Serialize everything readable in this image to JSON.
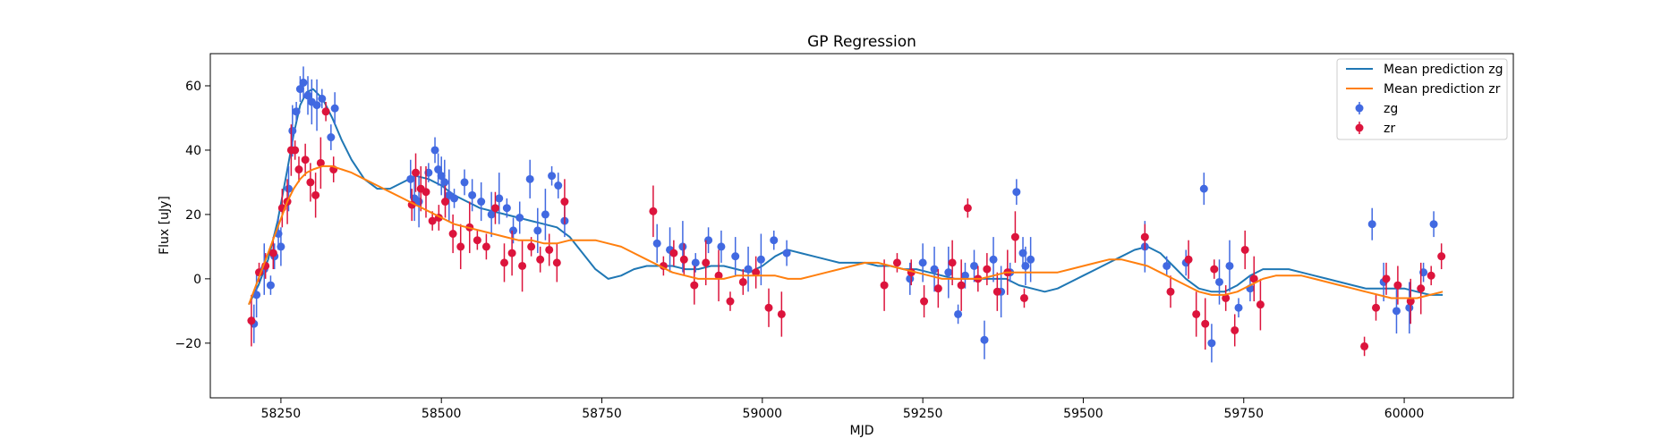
{
  "chart_data": {
    "type": "scatter",
    "title": "GP Regression",
    "xlabel": "MJD",
    "ylabel": "Flux [uJy]",
    "xlim": [
      58140,
      60170
    ],
    "ylim": [
      -37,
      70
    ],
    "xticks": [
      58250,
      58500,
      58750,
      59000,
      59250,
      59500,
      59750,
      60000
    ],
    "yticks": [
      -20,
      0,
      20,
      40,
      60
    ],
    "grid": false,
    "legend_position": "top-right",
    "legend": [
      "Mean prediction zg",
      "Mean prediction zr",
      "zg",
      "zr"
    ],
    "colors": {
      "zg_line": "#1f77b4",
      "zr_line": "#ff7f0e",
      "zg_points": "#4169e1",
      "zr_points": "#dc143c"
    },
    "series": [
      {
        "name": "Mean prediction zg",
        "kind": "line",
        "x": [
          58200,
          58215,
          58230,
          58245,
          58260,
          58270,
          58280,
          58290,
          58300,
          58315,
          58330,
          58345,
          58360,
          58380,
          58400,
          58420,
          58440,
          58460,
          58480,
          58500,
          58520,
          58540,
          58560,
          58580,
          58600,
          58620,
          58640,
          58660,
          58680,
          58700,
          58720,
          58740,
          58760,
          58780,
          58800,
          58820,
          58840,
          58860,
          58880,
          58900,
          58920,
          58940,
          58960,
          58980,
          59000,
          59020,
          59040,
          59060,
          59080,
          59100,
          59120,
          59140,
          59160,
          59180,
          59200,
          59220,
          59240,
          59260,
          59280,
          59300,
          59320,
          59340,
          59360,
          59380,
          59400,
          59420,
          59440,
          59460,
          59480,
          59500,
          59520,
          59540,
          59560,
          59580,
          59600,
          59620,
          59640,
          59660,
          59680,
          59700,
          59720,
          59740,
          59760,
          59780,
          59800,
          59820,
          59840,
          59860,
          59880,
          59900,
          59920,
          59940,
          59960,
          59980,
          60000,
          60020,
          60040,
          60060
        ],
        "y": [
          -8,
          -2,
          6,
          18,
          34,
          45,
          54,
          58,
          59,
          56,
          50,
          43,
          37,
          31,
          28,
          28,
          30,
          32,
          31,
          29,
          26,
          24,
          22,
          21,
          20,
          19,
          18,
          17,
          16,
          13,
          8,
          3,
          0,
          1,
          3,
          4,
          4,
          4,
          3,
          3,
          4,
          4,
          3,
          2,
          4,
          7,
          9,
          8,
          7,
          6,
          5,
          5,
          5,
          4,
          4,
          3,
          3,
          2,
          1,
          0,
          0,
          0,
          0,
          0,
          -2,
          -3,
          -4,
          -3,
          -1,
          1,
          3,
          5,
          7,
          9,
          10,
          8,
          4,
          0,
          -3,
          -4,
          -4,
          -2,
          1,
          3,
          3,
          3,
          2,
          1,
          0,
          -1,
          -2,
          -3,
          -3,
          -3,
          -3,
          -4,
          -5,
          -5
        ]
      },
      {
        "name": "Mean prediction zr",
        "kind": "line",
        "x": [
          58200,
          58215,
          58230,
          58245,
          58260,
          58270,
          58280,
          58290,
          58300,
          58315,
          58330,
          58345,
          58360,
          58380,
          58400,
          58420,
          58440,
          58460,
          58480,
          58500,
          58520,
          58540,
          58560,
          58580,
          58600,
          58620,
          58640,
          58660,
          58680,
          58700,
          58720,
          58740,
          58760,
          58780,
          58800,
          58820,
          58840,
          58860,
          58880,
          58900,
          58920,
          58940,
          58960,
          58980,
          59000,
          59020,
          59040,
          59060,
          59080,
          59100,
          59120,
          59140,
          59160,
          59180,
          59200,
          59220,
          59240,
          59260,
          59280,
          59300,
          59320,
          59340,
          59360,
          59380,
          59400,
          59420,
          59440,
          59460,
          59480,
          59500,
          59520,
          59540,
          59560,
          59580,
          59600,
          59620,
          59640,
          59660,
          59680,
          59700,
          59720,
          59740,
          59760,
          59780,
          59800,
          59820,
          59840,
          59860,
          59880,
          59900,
          59920,
          59940,
          59960,
          59980,
          60000,
          60020,
          60040,
          60060
        ],
        "y": [
          -8,
          0,
          8,
          16,
          24,
          28,
          31,
          33,
          34,
          35,
          35,
          34,
          33,
          31,
          29,
          27,
          25,
          23,
          21,
          19,
          17,
          16,
          15,
          14,
          13,
          12,
          12,
          11,
          11,
          12,
          12,
          12,
          11,
          10,
          8,
          6,
          4,
          2,
          1,
          0,
          0,
          0,
          1,
          1,
          1,
          1,
          0,
          0,
          1,
          2,
          3,
          4,
          5,
          5,
          4,
          3,
          2,
          1,
          0,
          0,
          0,
          0,
          1,
          2,
          2,
          2,
          2,
          2,
          3,
          4,
          5,
          6,
          6,
          5,
          4,
          2,
          0,
          -2,
          -4,
          -5,
          -5,
          -4,
          -2,
          0,
          1,
          1,
          1,
          0,
          -1,
          -2,
          -3,
          -4,
          -5,
          -6,
          -6,
          -6,
          -5,
          -4
        ]
      },
      {
        "name": "zg",
        "kind": "errorbar",
        "x": [
          58208,
          58212,
          58224,
          58234,
          58240,
          58246,
          58250,
          58262,
          58268,
          58274,
          58280,
          58285,
          58292,
          58298,
          58306,
          58314,
          58328,
          58334,
          58452,
          58458,
          58465,
          58480,
          58490,
          58495,
          58500,
          58505,
          58512,
          58520,
          58536,
          58548,
          58562,
          58578,
          58590,
          58602,
          58612,
          58622,
          58638,
          58650,
          58662,
          58672,
          58682,
          58692,
          58836,
          58856,
          58876,
          58896,
          58916,
          58936,
          58958,
          58978,
          58998,
          59018,
          59038,
          59230,
          59250,
          59268,
          59290,
          59305,
          59316,
          59330,
          59346,
          59360,
          59372,
          59386,
          59396,
          59406,
          59410,
          59418,
          59596,
          59630,
          59660,
          59688,
          59700,
          59712,
          59728,
          59742,
          59760,
          59950,
          59968,
          59988,
          60008,
          60030,
          60046
        ],
        "y": [
          -14,
          -5,
          3,
          -2,
          7,
          14,
          10,
          28,
          46,
          52,
          59,
          61,
          57,
          55,
          54,
          56,
          44,
          53,
          31,
          25,
          24,
          33,
          40,
          34,
          32,
          30,
          26,
          25,
          30,
          26,
          24,
          20,
          25,
          22,
          15,
          19,
          31,
          15,
          20,
          32,
          29,
          18,
          11,
          9,
          10,
          5,
          12,
          10,
          7,
          3,
          6,
          12,
          8,
          0,
          5,
          3,
          2,
          -11,
          1,
          4,
          -19,
          6,
          -4,
          2,
          27,
          8,
          4,
          6,
          10,
          4,
          5,
          28,
          -20,
          -1,
          4,
          -9,
          -3,
          17,
          -1,
          -10,
          -9,
          2,
          17
        ]
      },
      {
        "name": "zr",
        "kind": "errorbar",
        "x": [
          58204,
          58216,
          58226,
          58238,
          58252,
          58260,
          58266,
          58272,
          58278,
          58288,
          58296,
          58304,
          58312,
          58320,
          58332,
          58454,
          58460,
          58468,
          58476,
          58486,
          58496,
          58506,
          58518,
          58530,
          58544,
          58556,
          58570,
          58584,
          58598,
          58610,
          58626,
          58640,
          58654,
          58668,
          58680,
          58692,
          58830,
          58846,
          58862,
          58878,
          58894,
          58912,
          58932,
          58950,
          58970,
          58990,
          59010,
          59030,
          59190,
          59210,
          59232,
          59252,
          59274,
          59296,
          59310,
          59320,
          59336,
          59350,
          59366,
          59382,
          59394,
          59408,
          59596,
          59636,
          59664,
          59676,
          59690,
          59704,
          59722,
          59736,
          59752,
          59766,
          59776,
          59938,
          59956,
          59972,
          59990,
          60010,
          60026,
          60042,
          60058
        ],
        "y": [
          -13,
          2,
          4,
          8,
          22,
          24,
          40,
          40,
          34,
          37,
          30,
          26,
          36,
          52,
          34,
          23,
          33,
          28,
          27,
          18,
          19,
          24,
          14,
          10,
          16,
          12,
          10,
          22,
          5,
          8,
          4,
          10,
          6,
          9,
          5,
          24,
          21,
          4,
          8,
          6,
          -2,
          5,
          1,
          -7,
          -1,
          2,
          -9,
          -11,
          -2,
          5,
          2,
          -7,
          -3,
          5,
          -2,
          22,
          0,
          3,
          -4,
          2,
          13,
          -6,
          13,
          -4,
          6,
          -11,
          -14,
          3,
          -6,
          -16,
          9,
          0,
          -8,
          -21,
          -9,
          0,
          -2,
          -7,
          -3,
          1,
          7
        ]
      }
    ]
  }
}
